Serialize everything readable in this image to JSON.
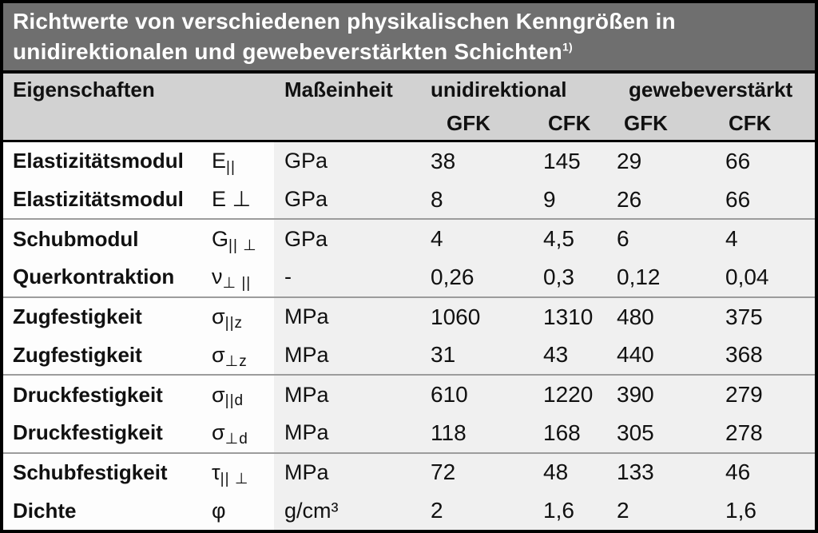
{
  "title": {
    "line1": "Richtwerte von verschiedenen physikalischen Kenngrößen in",
    "line2": "unidirektionalen und gewebeverstärkten Schichten",
    "footnote_marker": "1)"
  },
  "header": {
    "col_property": "Eigenschaften",
    "col_unit": "Maßeinheit",
    "group1": "unidirektional",
    "group2": "gewebeverstärkt",
    "subcols": [
      "GFK",
      "CFK",
      "GFK",
      "CFK"
    ]
  },
  "rows": [
    {
      "property": "Elastizitätsmodul",
      "symbol": {
        "main": "E",
        "sub": "||"
      },
      "unit": "GPa",
      "values": [
        "38",
        "145",
        "29",
        "66"
      ]
    },
    {
      "property": "Elastizitätsmodul",
      "symbol": {
        "main": "E ⊥",
        "sub": ""
      },
      "unit": "GPa",
      "values": [
        "8",
        "9",
        "26",
        "66"
      ]
    },
    {
      "property": "Schubmodul",
      "symbol": {
        "main": "G",
        "sub": "|| ⊥"
      },
      "unit": "GPa",
      "values": [
        "4",
        "4,5",
        "6",
        "4"
      ]
    },
    {
      "property": "Querkontraktion",
      "symbol": {
        "main": "ν",
        "sub": "⊥ ||"
      },
      "unit": "-",
      "values": [
        "0,26",
        "0,3",
        "0,12",
        "0,04"
      ]
    },
    {
      "property": "Zugfestigkeit",
      "symbol": {
        "main": "σ",
        "sub": "||z"
      },
      "unit": "MPa",
      "values": [
        "1060",
        "1310",
        "480",
        "375"
      ]
    },
    {
      "property": "Zugfestigkeit",
      "symbol": {
        "main": "σ",
        "sub": "⊥z"
      },
      "unit": "MPa",
      "values": [
        "31",
        "43",
        "440",
        "368"
      ]
    },
    {
      "property": "Druckfestigkeit",
      "symbol": {
        "main": "σ",
        "sub": "||d"
      },
      "unit": "MPa",
      "values": [
        "610",
        "1220",
        "390",
        "279"
      ]
    },
    {
      "property": "Druckfestigkeit",
      "symbol": {
        "main": "σ",
        "sub": "⊥d"
      },
      "unit": "MPa",
      "values": [
        "118",
        "168",
        "305",
        "278"
      ]
    },
    {
      "property": "Schubfestigkeit",
      "symbol": {
        "main": "τ",
        "sub": "|| ⊥"
      },
      "unit": "MPa",
      "values": [
        "72",
        "48",
        "133",
        "46"
      ]
    },
    {
      "property": "Dichte",
      "symbol": {
        "main": "φ",
        "sub": ""
      },
      "unit": "g/cm³",
      "values": [
        "2",
        "1,6",
        "2",
        "1,6"
      ]
    }
  ],
  "colors": {
    "title_bg": "#6f6f6f",
    "title_text": "#ffffff",
    "header_bg": "#d2d2d2",
    "body_left_bg": "#fdfdfd",
    "body_right_bg": "#f0f0f0",
    "border": "#000000",
    "separator": "#9c9c9c",
    "text": "#111111"
  }
}
